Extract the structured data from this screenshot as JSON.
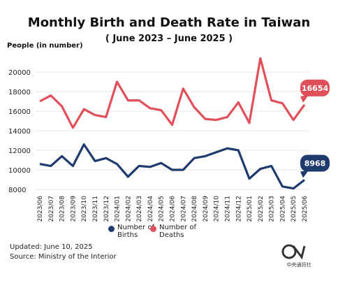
{
  "chart_data": {
    "type": "line",
    "title": "Monthly Birth and Death Rate in Taiwan",
    "subtitle": "( June 2023 – June 2025 )",
    "y_label": "People (in number)",
    "categories": [
      "2023/06",
      "2023/07",
      "2023/08",
      "2023/09",
      "2023/10",
      "2023/11",
      "2023/12",
      "2024/01",
      "2024/02",
      "2024/03",
      "2024/04",
      "2024/05",
      "2024/06",
      "2024/07",
      "2024/08",
      "2024/09",
      "2024/10",
      "2024/11",
      "2024/12",
      "2025/01",
      "2025/02",
      "2025/03",
      "2025/04",
      "2025/05",
      "2025/06"
    ],
    "series": [
      {
        "name": "Number of Births",
        "color": "#1f3b6e",
        "values": [
          10600,
          10400,
          11400,
          10400,
          12600,
          10900,
          11200,
          10600,
          9300,
          10400,
          10300,
          10700,
          10000,
          10000,
          11200,
          11400,
          11800,
          12200,
          12000,
          9100,
          10100,
          10400,
          8300,
          8100,
          8968
        ]
      },
      {
        "name": "Number of Deaths",
        "color": "#e0505a",
        "values": [
          17000,
          17600,
          16500,
          14300,
          16200,
          15600,
          15400,
          19000,
          17100,
          17100,
          16300,
          16100,
          14600,
          18300,
          16400,
          15200,
          15100,
          15400,
          16900,
          14800,
          21400,
          17100,
          16800,
          15100,
          16654
        ]
      }
    ],
    "ylim": [
      7500,
      22000
    ],
    "yticks": [
      8000,
      10000,
      12000,
      14000,
      16000,
      18000,
      20000
    ],
    "grid": true,
    "updated": "Updated: June 10, 2025",
    "source": "Source: Ministry of the Interior",
    "logo_text": "中央通訊社"
  }
}
